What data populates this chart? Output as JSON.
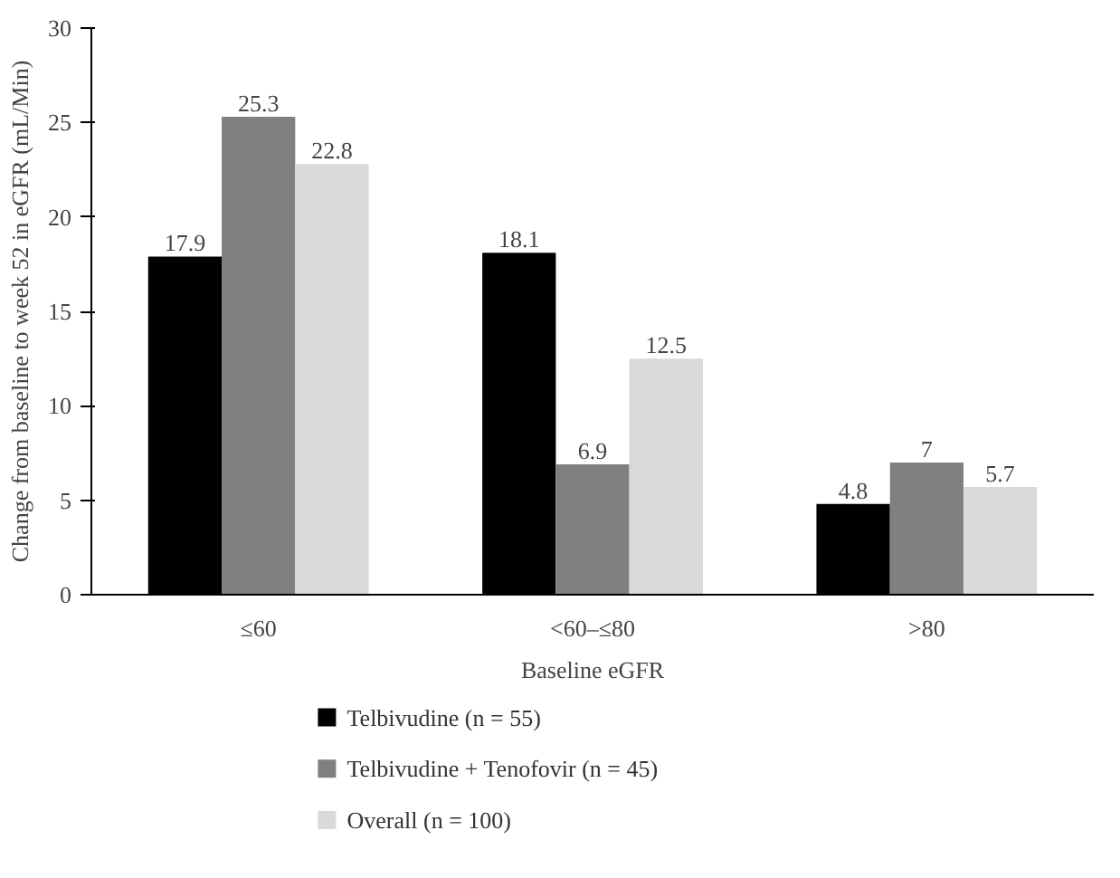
{
  "chart_data": {
    "type": "bar",
    "xlabel": "Baseline eGFR",
    "ylabel": "Change from baseline to week 52 in eGFR (mL/Min)",
    "categories": [
      "≤60",
      "<60–≤80",
      ">80"
    ],
    "series": [
      {
        "name": "Telbivudine (n = 55)",
        "color": "#000000",
        "values": [
          17.9,
          18.1,
          4.8
        ]
      },
      {
        "name": "Telbivudine + Tenofovir (n = 45)",
        "color": "#808080",
        "values": [
          25.3,
          6.9,
          7
        ]
      },
      {
        "name": "Overall (n = 100)",
        "color": "#d9d9d9",
        "values": [
          22.8,
          12.5,
          5.7
        ]
      }
    ],
    "ylim": [
      0,
      30
    ],
    "yticks": [
      0,
      5,
      10,
      15,
      20,
      25,
      30
    ],
    "data_labels": true,
    "grid": false,
    "legend": "bottom"
  }
}
